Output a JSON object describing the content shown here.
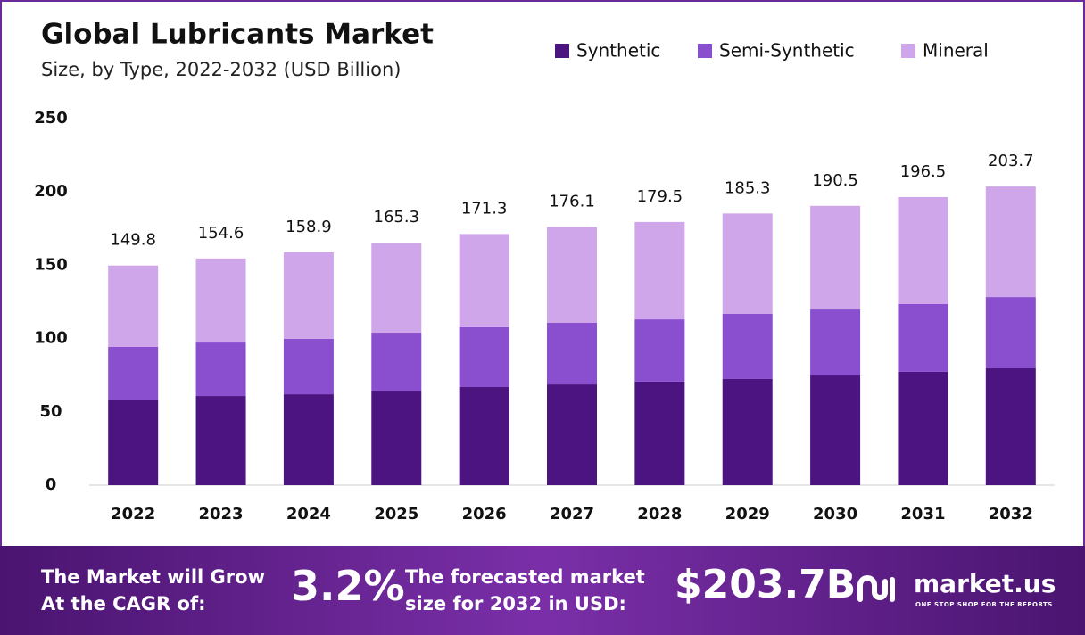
{
  "chart_data": {
    "type": "stacked_bar",
    "title": "Global Lubricants Market",
    "subtitle": "Size, by Type, 2022-2032 (USD Billion)",
    "categories": [
      "2022",
      "2023",
      "2024",
      "2025",
      "2026",
      "2027",
      "2028",
      "2029",
      "2030",
      "2031",
      "2032"
    ],
    "series": [
      {
        "name": "Synthetic",
        "color": "#4b1480",
        "values": [
          58.4,
          60.8,
          62.0,
          64.5,
          66.9,
          68.7,
          70.6,
          72.4,
          74.8,
          77.3,
          79.7
        ]
      },
      {
        "name": "Semi-Synthetic",
        "color": "#8a4fcf",
        "values": [
          35.9,
          36.5,
          37.8,
          39.5,
          40.8,
          42.0,
          42.5,
          44.4,
          45.0,
          46.2,
          48.6
        ]
      },
      {
        "name": "Mineral",
        "color": "#d0a6ea",
        "values": [
          55.5,
          57.3,
          59.1,
          61.3,
          63.6,
          65.4,
          66.4,
          68.5,
          70.7,
          73.0,
          75.4
        ]
      }
    ],
    "totals": [
      149.8,
      154.6,
      158.9,
      165.3,
      171.3,
      176.1,
      179.5,
      185.3,
      190.5,
      196.5,
      203.7
    ],
    "ylim": [
      0,
      250
    ],
    "yticks": [
      0,
      50,
      100,
      150,
      200,
      250
    ],
    "grid": false
  },
  "footer": {
    "cagr_text": [
      "The Market will Grow",
      "At the CAGR of:"
    ],
    "cagr": "3.2%",
    "forecast_text": [
      "The forecasted market",
      "size for 2032 in USD:"
    ],
    "forecast": "$203.7B",
    "brand": "market.us",
    "tagline": "ONE STOP SHOP FOR THE REPORTS"
  }
}
